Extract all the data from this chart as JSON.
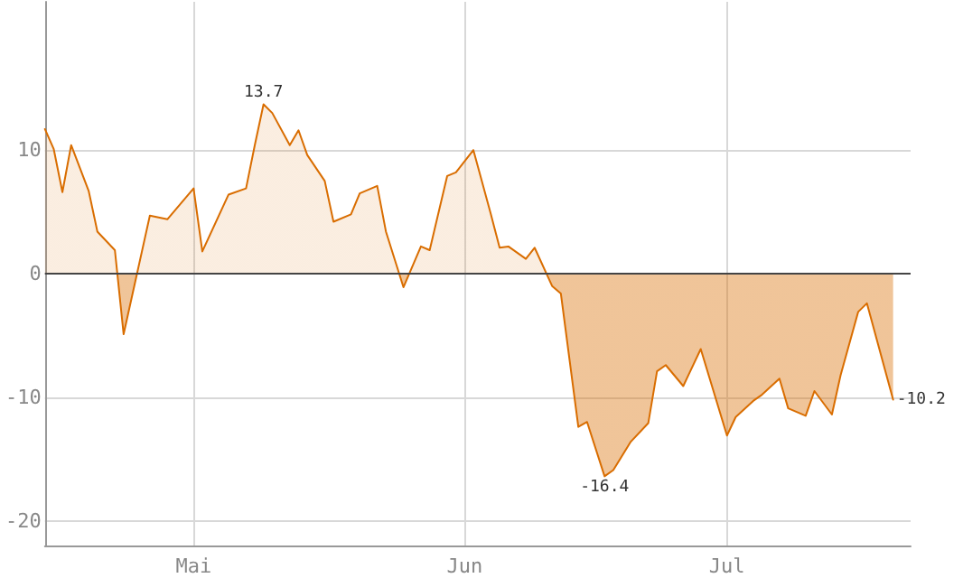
{
  "chart_data": {
    "type": "area",
    "x": [
      "--04-14",
      "--04-15",
      "--04-16",
      "--04-17",
      "--04-19",
      "--04-20",
      "--04-22",
      "--04-23",
      "--04-26",
      "--04-28",
      "--05-01",
      "--05-02",
      "--05-05",
      "--05-07",
      "--05-08",
      "--05-09",
      "--05-10",
      "--05-12",
      "--05-13",
      "--05-14",
      "--05-16",
      "--05-17",
      "--05-19",
      "--05-20",
      "--05-22",
      "--05-23",
      "--05-25",
      "--05-27",
      "--05-28",
      "--05-30",
      "--05-31",
      "--06-02",
      "--06-04",
      "--06-05",
      "--06-06",
      "--06-08",
      "--06-09",
      "--06-11",
      "--06-12",
      "--06-14",
      "--06-15",
      "--06-17",
      "--06-18",
      "--06-20",
      "--06-22",
      "--06-23",
      "--06-24",
      "--06-26",
      "--06-28",
      "--07-01",
      "--07-02",
      "--07-04",
      "--07-05",
      "--07-07",
      "--07-08",
      "--07-10",
      "--07-11",
      "--07-13",
      "--07-14",
      "--07-16",
      "--07-17",
      "--07-20"
    ],
    "series": [
      {
        "color": "#d96d00",
        "values": [
          11.7,
          10.1,
          6.6,
          10.4,
          6.7,
          3.4,
          1.9,
          -4.9,
          4.7,
          4.4,
          6.9,
          1.8,
          6.4,
          6.9,
          10.4,
          13.7,
          13.0,
          10.4,
          11.6,
          9.6,
          7.5,
          4.2,
          4.8,
          6.5,
          7.1,
          3.4,
          -1.1,
          2.2,
          1.9,
          7.9,
          8.2,
          10.0,
          4.8,
          2.1,
          2.2,
          1.2,
          2.1,
          -1.0,
          -1.6,
          -12.4,
          -12.0,
          -16.4,
          -15.9,
          -13.6,
          -12.1,
          -7.9,
          -7.4,
          -9.1,
          -6.1,
          -13.1,
          -11.6,
          -10.3,
          -9.8,
          -8.5,
          -10.9,
          -11.5,
          -9.5,
          -11.4,
          -8.2,
          -3.1,
          -2.4,
          -10.2
        ],
        "value_labels": [
          null,
          null,
          null,
          null,
          null,
          null,
          null,
          null,
          null,
          null,
          null,
          null,
          null,
          null,
          null,
          "13.7",
          null,
          null,
          null,
          null,
          null,
          null,
          null,
          null,
          null,
          null,
          null,
          null,
          null,
          null,
          null,
          null,
          null,
          null,
          null,
          null,
          null,
          null,
          null,
          null,
          null,
          "-16.4",
          null,
          null,
          null,
          null,
          null,
          null,
          null,
          null,
          null,
          null,
          null,
          null,
          null,
          null,
          null,
          null,
          null,
          null,
          null,
          "-10.2"
        ]
      }
    ],
    "xlim": [
      "--04-14",
      "--07-22"
    ],
    "xticks": [
      {
        "value": "--05-01",
        "label": "Mai"
      },
      {
        "value": "--06-01",
        "label": "Jun"
      },
      {
        "value": "--07-01",
        "label": "Jul"
      }
    ],
    "ylim": [
      -22,
      22
    ],
    "yticks": [
      -20,
      -10,
      0,
      10
    ],
    "ref_lines": [
      {
        "axis": "y",
        "value": 0,
        "color": "#444444"
      }
    ],
    "grid": true,
    "marker": "none",
    "line_style": "solid"
  }
}
